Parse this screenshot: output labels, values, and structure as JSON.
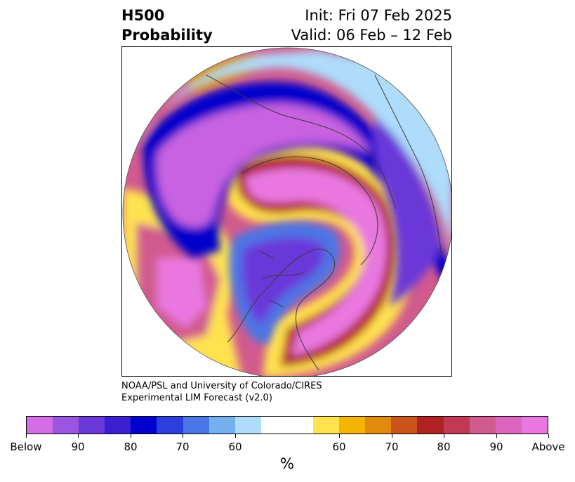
{
  "title": {
    "variable": "H500",
    "product": "Probability",
    "init": "Init: Fri 07 Feb 2025",
    "valid": "Valid: 06 Feb – 12 Feb"
  },
  "credit": {
    "line1": "NOAA/PSL and University of Colorado/CIRES",
    "line2": "Experimental LIM Forecast (v2.0)"
  },
  "colorbar": {
    "unit": "%",
    "colors": [
      "#d36ee6",
      "#9b55e0",
      "#6a37d9",
      "#3c1fd3",
      "#0000cc",
      "#2a3fdc",
      "#4b76e6",
      "#74b0f0",
      "#aedcfa",
      "#ffffff",
      "#ffe24f",
      "#f4b400",
      "#e08a10",
      "#c9541c",
      "#b02323",
      "#c03a55",
      "#d15a8e",
      "#dc66bd",
      "#e878e0"
    ],
    "tick_labels": [
      "Below",
      "90",
      "80",
      "70",
      "60",
      "60",
      "70",
      "80",
      "90",
      "Above"
    ]
  },
  "map_colors": {
    "below_outer": "#aedcfa",
    "below_mid": "#4b76e6",
    "below_deep": "#0000cc",
    "below_core": "#6a37d9",
    "below_peak": "#c862e0",
    "above_outer": "#ffe24f",
    "above_mid": "#e08a10",
    "above_deep": "#b02323",
    "above_core": "#d15a8e",
    "above_peak": "#e878e0"
  }
}
